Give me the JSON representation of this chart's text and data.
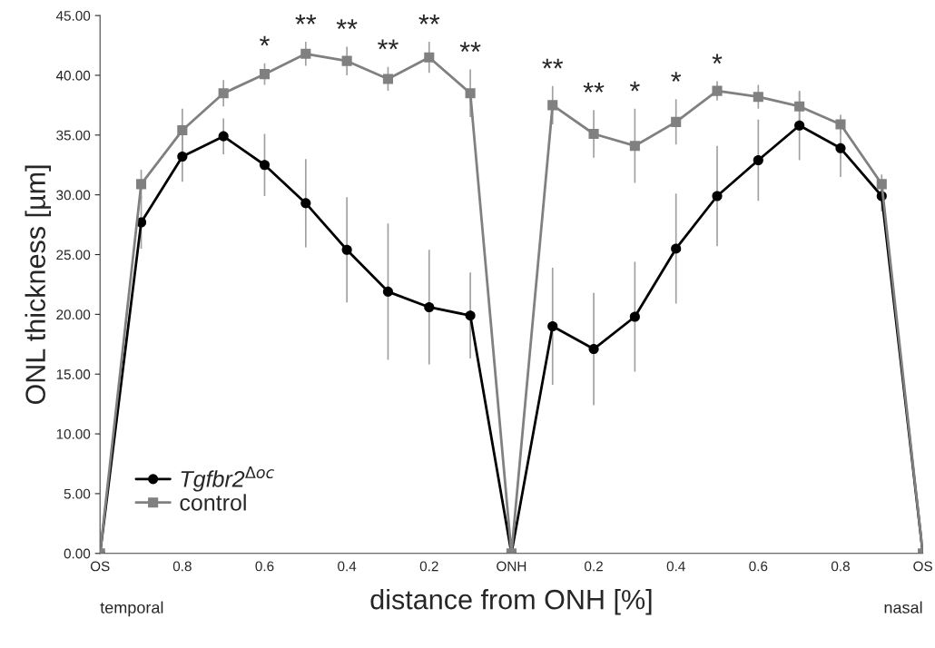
{
  "chart_data": {
    "type": "line",
    "xlabel": "distance from ONH [%]",
    "ylabel": "ONL thickness [µm]",
    "categories": [
      "OS",
      null,
      "0.8",
      null,
      "0.6",
      null,
      "0.4",
      null,
      "0.2",
      null,
      "ONH",
      null,
      "0.2",
      null,
      "0.4",
      null,
      "0.6",
      null,
      "0.8",
      null,
      "OS"
    ],
    "ylim": [
      0,
      45
    ],
    "yticks": [
      {
        "value": 0,
        "label": "0.00"
      },
      {
        "value": 5,
        "label": "5.00"
      },
      {
        "value": 10,
        "label": "10.00"
      },
      {
        "value": 15,
        "label": "15.00"
      },
      {
        "value": 20,
        "label": "20.00"
      },
      {
        "value": 25,
        "label": "25.00"
      },
      {
        "value": 30,
        "label": "30.00"
      },
      {
        "value": 35,
        "label": "35.00"
      },
      {
        "value": 40,
        "label": "40.00"
      },
      {
        "value": 45,
        "label": "45.00"
      }
    ],
    "series": [
      {
        "name": "Tgfbr2$^{Δoc}$",
        "color": "#000000",
        "marker": "circle",
        "values": [
          0,
          27.7,
          33.2,
          34.9,
          32.5,
          29.3,
          25.4,
          21.9,
          20.6,
          19.9,
          0,
          19.0,
          17.1,
          19.8,
          25.5,
          29.9,
          32.9,
          35.8,
          33.9,
          29.9,
          0
        ],
        "errors": [
          null,
          2.2,
          2.1,
          1.5,
          2.6,
          3.7,
          4.4,
          5.7,
          4.8,
          3.6,
          null,
          4.9,
          4.7,
          4.6,
          4.6,
          4.2,
          3.4,
          2.9,
          2.4,
          1.3,
          null
        ]
      },
      {
        "name": "control",
        "color": "#808080",
        "marker": "square",
        "values": [
          0,
          30.9,
          35.4,
          38.5,
          40.1,
          41.8,
          41.2,
          39.7,
          41.5,
          38.5,
          0,
          37.5,
          35.1,
          34.1,
          36.1,
          38.7,
          38.2,
          37.4,
          35.9,
          30.9,
          0
        ],
        "errors": [
          null,
          1.2,
          1.8,
          1.1,
          0.9,
          1.0,
          1.2,
          1.0,
          1.3,
          2.0,
          null,
          1.6,
          2.0,
          3.1,
          1.9,
          0.8,
          1.0,
          1.2,
          0.8,
          0.8,
          null
        ],
        "value_labels": [
          null,
          null,
          null,
          null,
          "*",
          "**",
          "**",
          "**",
          "**",
          "**",
          null,
          "**",
          "**",
          "*",
          "*",
          "*",
          null,
          null,
          null,
          null,
          null
        ]
      }
    ],
    "annotations": [
      "temporal",
      "nasal"
    ],
    "legend": "bottom left",
    "grid": false
  }
}
